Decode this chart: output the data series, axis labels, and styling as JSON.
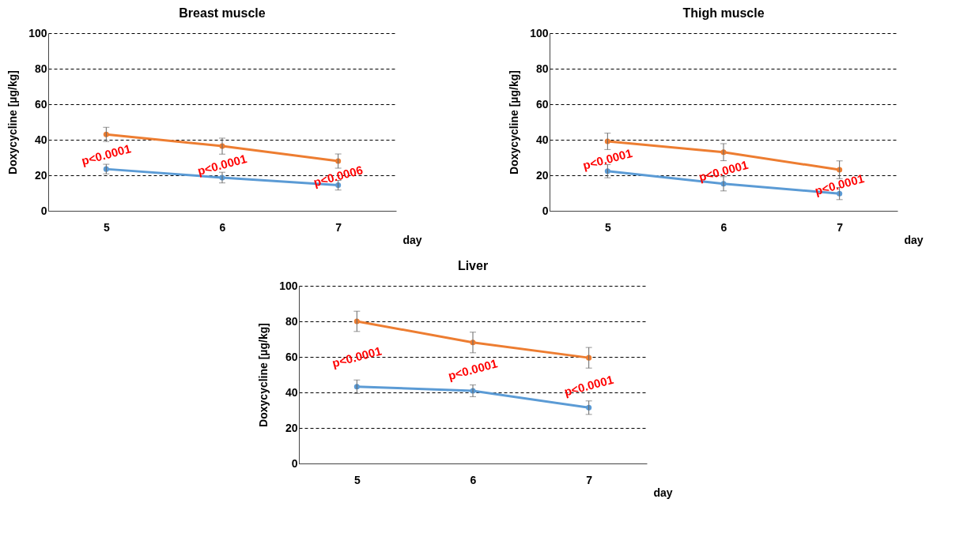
{
  "chart_data": [
    {
      "type": "line",
      "title": "Breast muscle",
      "xlabel": "day",
      "ylabel": "Doxycycline  [µg/kg]",
      "categories": [
        "5",
        "6",
        "7"
      ],
      "ylim": [
        0,
        100
      ],
      "yticks": [
        0,
        20,
        40,
        60,
        80,
        100
      ],
      "grid": "y",
      "marker": "circle",
      "series": [
        {
          "color": "#ed7d31",
          "values": [
            43,
            36.4,
            28
          ],
          "errors": [
            4,
            4.5,
            4
          ]
        },
        {
          "color": "#5b9bd5",
          "values": [
            23.5,
            18.7,
            14.4
          ],
          "errors": [
            2.7,
            3,
            2.7
          ]
        }
      ],
      "annotations": [
        "p<0.0001",
        "p<0.0001",
        "p<0.0006"
      ]
    },
    {
      "type": "line",
      "title": "Thigh muscle",
      "xlabel": "day",
      "ylabel": "Doxycycline  [µg/kg]",
      "categories": [
        "5",
        "6",
        "7"
      ],
      "ylim": [
        0,
        100
      ],
      "yticks": [
        0,
        20,
        40,
        60,
        80,
        100
      ],
      "grid": "y",
      "marker": "circle",
      "series": [
        {
          "color": "#ed7d31",
          "values": [
            39.1,
            33,
            23.1
          ],
          "errors": [
            4.6,
            4.8,
            5
          ]
        },
        {
          "color": "#5b9bd5",
          "values": [
            22.3,
            15.2,
            9.7
          ],
          "errors": [
            3.7,
            4,
            3.4
          ]
        }
      ],
      "annotations": [
        "p<0.0001",
        "p<0.0001",
        "p<0.0001"
      ]
    },
    {
      "type": "line",
      "title": "Liver",
      "xlabel": "day",
      "ylabel": "Doxycycline  [µg/kg]",
      "categories": [
        "5",
        "6",
        "7"
      ],
      "ylim": [
        0,
        100
      ],
      "yticks": [
        0,
        20,
        40,
        60,
        80,
        100
      ],
      "grid": "y",
      "marker": "circle",
      "series": [
        {
          "color": "#ed7d31",
          "values": [
            80,
            68.1,
            59.5
          ],
          "errors": [
            5.7,
            5.8,
            5.8
          ]
        },
        {
          "color": "#5b9bd5",
          "values": [
            43.2,
            40.9,
            31.4
          ],
          "errors": [
            3.8,
            3.3,
            3.8
          ]
        }
      ],
      "annotations": [
        "p<0.0001",
        "p<0.0001",
        "p<0.0001"
      ]
    }
  ]
}
